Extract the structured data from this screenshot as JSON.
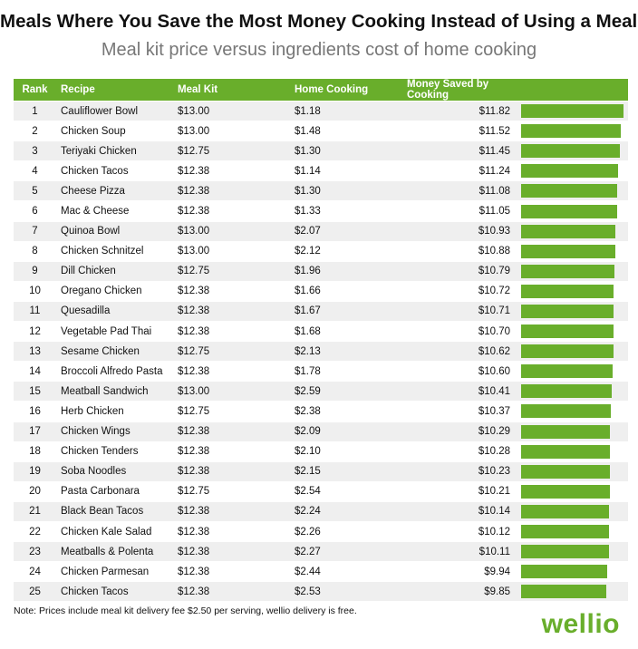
{
  "title": "Meals Where You Save the Most Money Cooking Instead of Using a Meal Kit",
  "subtitle": "Meal kit price versus ingredients cost of home cooking",
  "headers": {
    "rank": "Rank",
    "recipe": "Recipe",
    "meal_kit": "Meal Kit",
    "home_cooking": "Home Cooking",
    "money_saved": "Money Saved by Cooking"
  },
  "note": "Note: Prices include meal kit delivery fee $2.50 per serving, wellio delivery is free.",
  "logo": "wellio",
  "colors": {
    "accent": "#69ae2b",
    "stripe": "#efefef"
  },
  "chart_data": {
    "type": "table",
    "title": "Meals Where You Save the Most Money Cooking Instead of Using a Meal Kit",
    "subtitle": "Meal kit price versus ingredients cost of home cooking",
    "bar_max": 11.82,
    "rows": [
      {
        "rank": "1",
        "recipe": "Cauliflower Bowl",
        "meal_kit": "$13.00",
        "home_cooking": "$1.18",
        "saved": "$11.82",
        "saved_value": 11.82
      },
      {
        "rank": "2",
        "recipe": "Chicken Soup",
        "meal_kit": "$13.00",
        "home_cooking": "$1.48",
        "saved": "$11.52",
        "saved_value": 11.52
      },
      {
        "rank": "3",
        "recipe": "Teriyaki Chicken",
        "meal_kit": "$12.75",
        "home_cooking": "$1.30",
        "saved": "$11.45",
        "saved_value": 11.45
      },
      {
        "rank": "4",
        "recipe": "Chicken Tacos",
        "meal_kit": "$12.38",
        "home_cooking": "$1.14",
        "saved": "$11.24",
        "saved_value": 11.24
      },
      {
        "rank": "5",
        "recipe": "Cheese Pizza",
        "meal_kit": "$12.38",
        "home_cooking": "$1.30",
        "saved": "$11.08",
        "saved_value": 11.08
      },
      {
        "rank": "6",
        "recipe": "Mac & Cheese",
        "meal_kit": "$12.38",
        "home_cooking": "$1.33",
        "saved": "$11.05",
        "saved_value": 11.05
      },
      {
        "rank": "7",
        "recipe": "Quinoa Bowl",
        "meal_kit": "$13.00",
        "home_cooking": "$2.07",
        "saved": "$10.93",
        "saved_value": 10.93
      },
      {
        "rank": "8",
        "recipe": "Chicken Schnitzel",
        "meal_kit": "$13.00",
        "home_cooking": "$2.12",
        "saved": "$10.88",
        "saved_value": 10.88
      },
      {
        "rank": "9",
        "recipe": "Dill Chicken",
        "meal_kit": "$12.75",
        "home_cooking": "$1.96",
        "saved": "$10.79",
        "saved_value": 10.79
      },
      {
        "rank": "10",
        "recipe": "Oregano Chicken",
        "meal_kit": "$12.38",
        "home_cooking": "$1.66",
        "saved": "$10.72",
        "saved_value": 10.72
      },
      {
        "rank": "11",
        "recipe": "Quesadilla",
        "meal_kit": "$12.38",
        "home_cooking": "$1.67",
        "saved": "$10.71",
        "saved_value": 10.71
      },
      {
        "rank": "12",
        "recipe": "Vegetable Pad Thai",
        "meal_kit": "$12.38",
        "home_cooking": "$1.68",
        "saved": "$10.70",
        "saved_value": 10.7
      },
      {
        "rank": "13",
        "recipe": "Sesame Chicken",
        "meal_kit": "$12.75",
        "home_cooking": "$2.13",
        "saved": "$10.62",
        "saved_value": 10.62
      },
      {
        "rank": "14",
        "recipe": "Broccoli Alfredo Pasta",
        "meal_kit": "$12.38",
        "home_cooking": "$1.78",
        "saved": "$10.60",
        "saved_value": 10.6
      },
      {
        "rank": "15",
        "recipe": "Meatball Sandwich",
        "meal_kit": "$13.00",
        "home_cooking": "$2.59",
        "saved": "$10.41",
        "saved_value": 10.41
      },
      {
        "rank": "16",
        "recipe": "Herb Chicken",
        "meal_kit": "$12.75",
        "home_cooking": "$2.38",
        "saved": "$10.37",
        "saved_value": 10.37
      },
      {
        "rank": "17",
        "recipe": "Chicken Wings",
        "meal_kit": "$12.38",
        "home_cooking": "$2.09",
        "saved": "$10.29",
        "saved_value": 10.29
      },
      {
        "rank": "18",
        "recipe": "Chicken Tenders",
        "meal_kit": "$12.38",
        "home_cooking": "$2.10",
        "saved": "$10.28",
        "saved_value": 10.28
      },
      {
        "rank": "19",
        "recipe": "Soba Noodles",
        "meal_kit": "$12.38",
        "home_cooking": "$2.15",
        "saved": "$10.23",
        "saved_value": 10.23
      },
      {
        "rank": "20",
        "recipe": "Pasta Carbonara",
        "meal_kit": "$12.75",
        "home_cooking": "$2.54",
        "saved": "$10.21",
        "saved_value": 10.21
      },
      {
        "rank": "21",
        "recipe": "Black Bean Tacos",
        "meal_kit": "$12.38",
        "home_cooking": "$2.24",
        "saved": "$10.14",
        "saved_value": 10.14
      },
      {
        "rank": "22",
        "recipe": "Chicken Kale Salad",
        "meal_kit": "$12.38",
        "home_cooking": "$2.26",
        "saved": "$10.12",
        "saved_value": 10.12
      },
      {
        "rank": "23",
        "recipe": "Meatballs & Polenta",
        "meal_kit": "$12.38",
        "home_cooking": "$2.27",
        "saved": "$10.11",
        "saved_value": 10.11
      },
      {
        "rank": "24",
        "recipe": "Chicken Parmesan",
        "meal_kit": "$12.38",
        "home_cooking": "$2.44",
        "saved": "$9.94",
        "saved_value": 9.94
      },
      {
        "rank": "25",
        "recipe": "Chicken Tacos",
        "meal_kit": "$12.38",
        "home_cooking": "$2.53",
        "saved": "$9.85",
        "saved_value": 9.85
      }
    ]
  }
}
